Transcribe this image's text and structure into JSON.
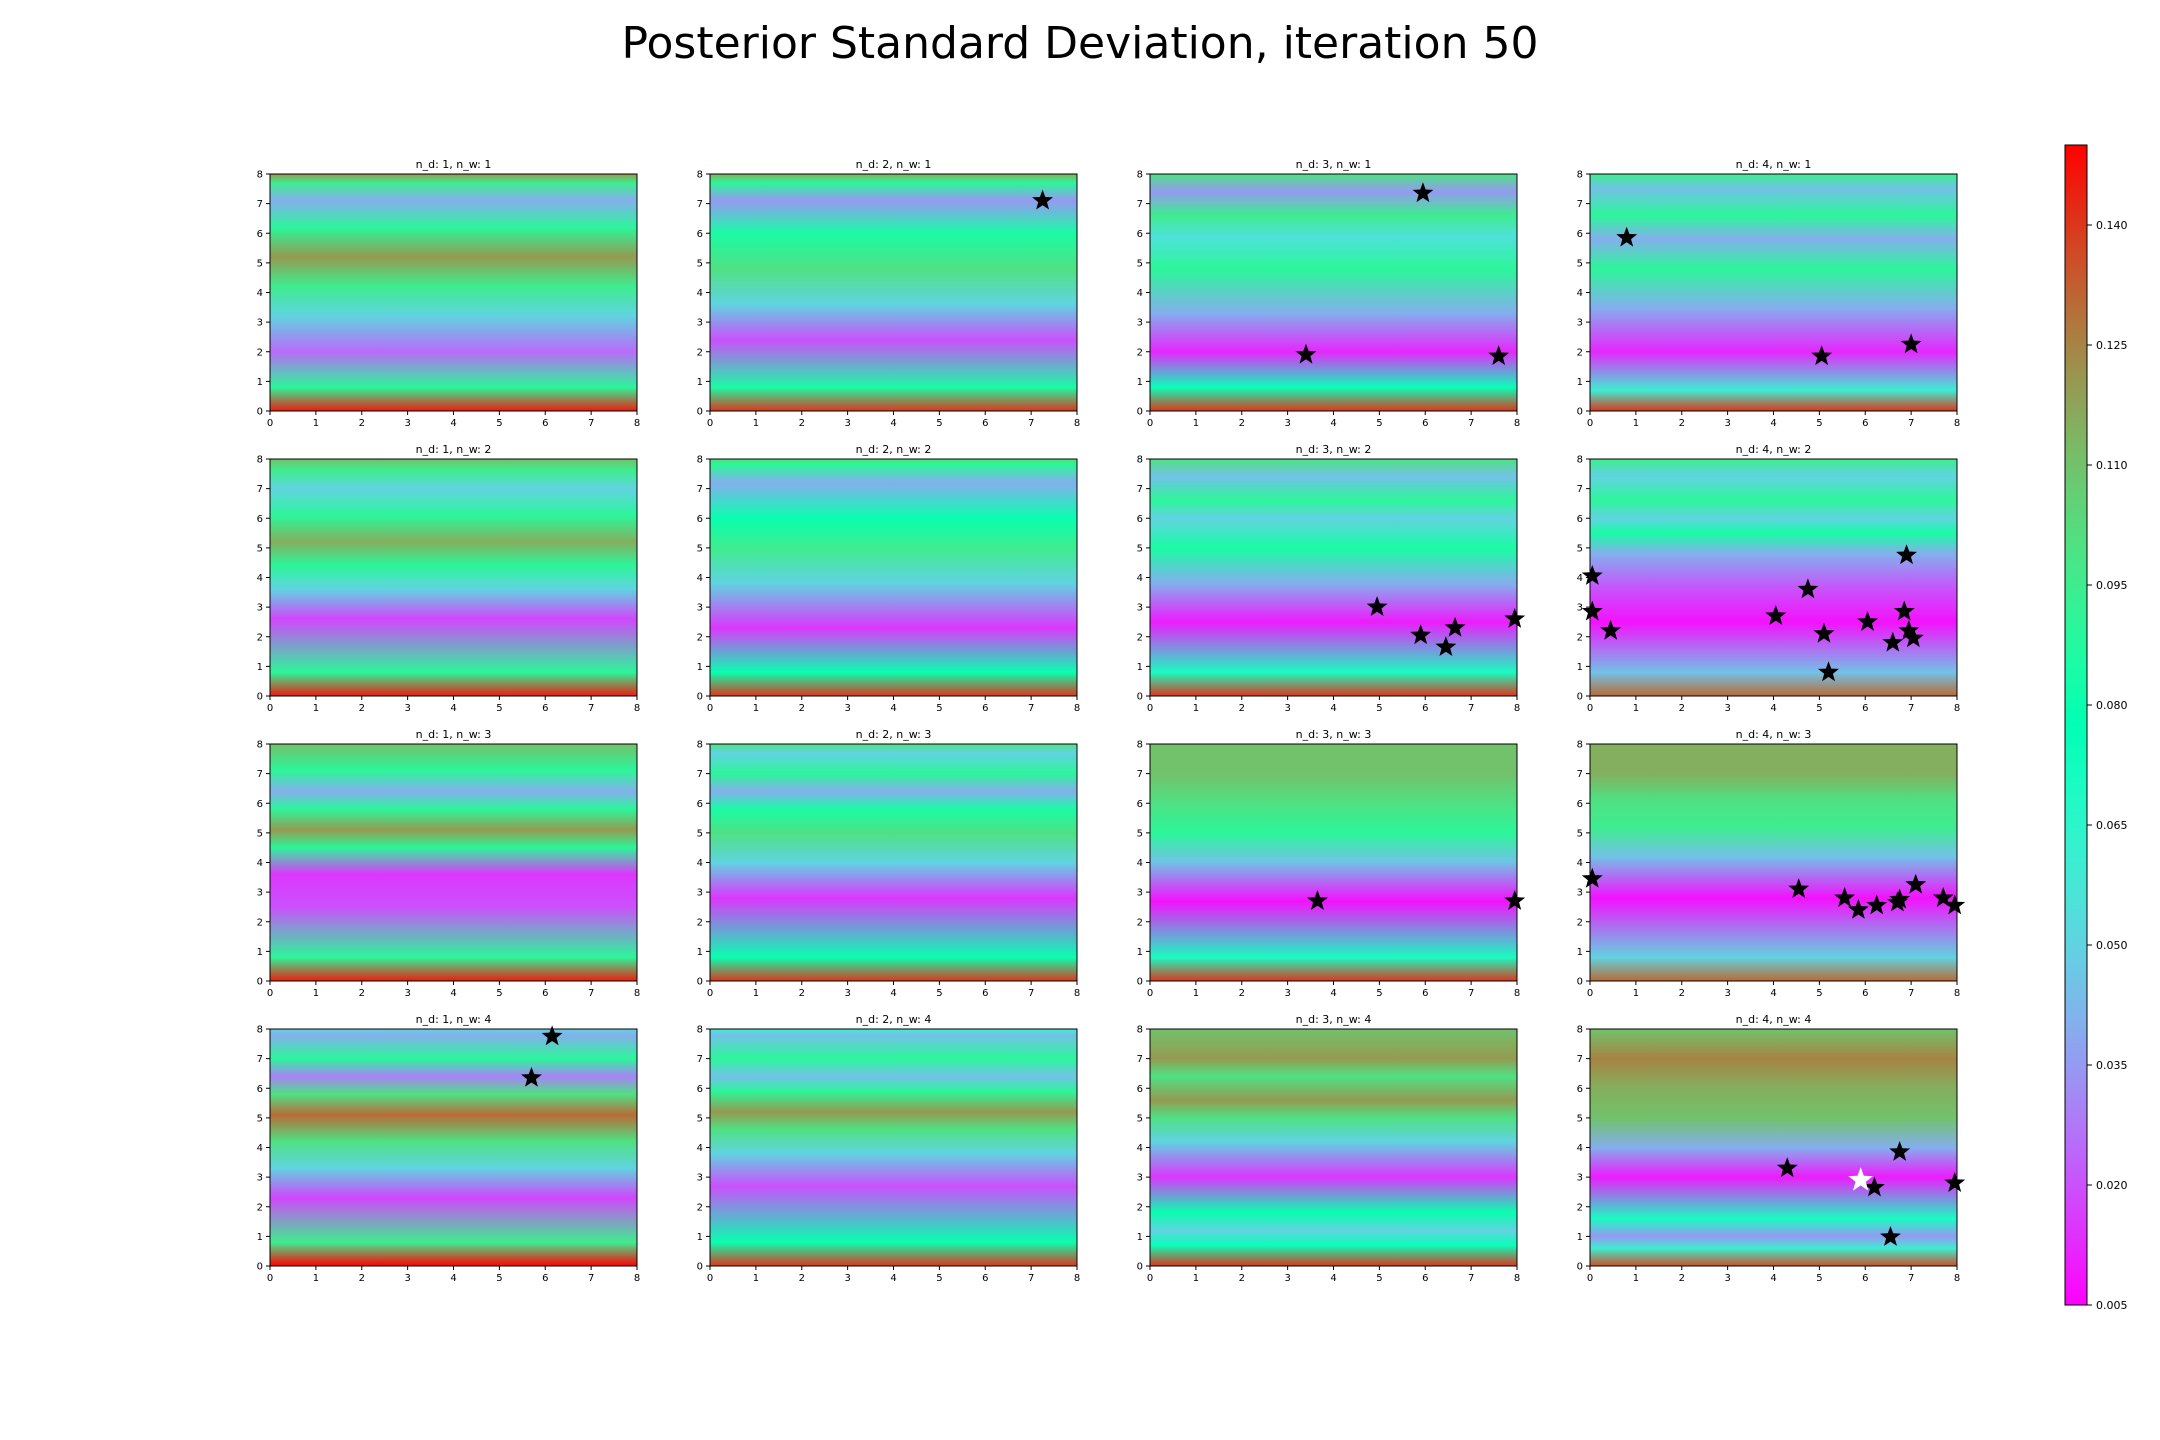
{
  "title": "Posterior Standard Deviation, iteration 50",
  "colorbar": {
    "min": 0.005,
    "max": 0.15,
    "tick_values": [
      0.005,
      0.02,
      0.035,
      0.05,
      0.065,
      0.08,
      0.095,
      0.11,
      0.125,
      0.14
    ],
    "tick_labels": [
      "0.005",
      "0.020",
      "0.035",
      "0.050",
      "0.065",
      "0.080",
      "0.095",
      "0.110",
      "0.125",
      "0.140"
    ],
    "colormap": "rainbow"
  },
  "chart_data": {
    "type": "heatmap",
    "grid": {
      "rows": 4,
      "cols": 4
    },
    "xlim": [
      0,
      8
    ],
    "ylim": [
      0,
      8
    ],
    "xticks": [
      "0",
      "1",
      "2",
      "3",
      "4",
      "5",
      "6",
      "7",
      "8"
    ],
    "yticks": [
      "0",
      "1",
      "2",
      "3",
      "4",
      "5",
      "6",
      "7",
      "8"
    ],
    "marker_color": "#000000",
    "highlight_marker_color": "#ffffff",
    "panels": [
      {
        "row": 0,
        "col": 0,
        "title": "n_d: 1, n_w: 1",
        "top_value": 0.11,
        "bands": [
          [
            0,
            0.145
          ],
          [
            0.8,
            0.09
          ],
          [
            2,
            0.025
          ],
          [
            3.2,
            0.05
          ],
          [
            4.2,
            0.095
          ],
          [
            5.2,
            0.12
          ],
          [
            6.2,
            0.09
          ],
          [
            7.1,
            0.04
          ],
          [
            7.7,
            0.095
          ],
          [
            8,
            0.12
          ]
        ],
        "points": []
      },
      {
        "row": 0,
        "col": 1,
        "title": "n_d: 2, n_w: 1",
        "top_value": 0.11,
        "bands": [
          [
            0,
            0.14
          ],
          [
            0.8,
            0.085
          ],
          [
            2.4,
            0.02
          ],
          [
            3.6,
            0.05
          ],
          [
            4.8,
            0.1
          ],
          [
            6,
            0.085
          ],
          [
            7.1,
            0.035
          ],
          [
            7.7,
            0.09
          ],
          [
            8,
            0.115
          ]
        ],
        "points": [
          [
            7.25,
            7.1
          ]
        ]
      },
      {
        "row": 0,
        "col": 2,
        "title": "n_d: 3, n_w: 1",
        "top_value": 0.11,
        "bands": [
          [
            0,
            0.14
          ],
          [
            0.8,
            0.075
          ],
          [
            2,
            0.012
          ],
          [
            3.3,
            0.04
          ],
          [
            4.8,
            0.09
          ],
          [
            5.9,
            0.055
          ],
          [
            6.6,
            0.095
          ],
          [
            7.4,
            0.035
          ],
          [
            8,
            0.1
          ]
        ],
        "points": [
          [
            5.95,
            7.35
          ],
          [
            3.4,
            1.9
          ],
          [
            7.6,
            1.85
          ]
        ]
      },
      {
        "row": 0,
        "col": 3,
        "title": "n_d: 4, n_w: 1",
        "top_value": 0.105,
        "bands": [
          [
            0,
            0.14
          ],
          [
            0.7,
            0.06
          ],
          [
            2,
            0.012
          ],
          [
            3.5,
            0.04
          ],
          [
            4.8,
            0.09
          ],
          [
            5.8,
            0.04
          ],
          [
            6.6,
            0.09
          ],
          [
            7.5,
            0.045
          ],
          [
            8,
            0.095
          ]
        ],
        "points": [
          [
            0.8,
            5.85
          ],
          [
            5.05,
            1.85
          ],
          [
            7.0,
            2.25
          ]
        ]
      },
      {
        "row": 1,
        "col": 0,
        "title": "n_d: 1, n_w: 2",
        "top_value": 0.11,
        "bands": [
          [
            0,
            0.145
          ],
          [
            0.8,
            0.09
          ],
          [
            2.6,
            0.018
          ],
          [
            3.6,
            0.05
          ],
          [
            4.4,
            0.09
          ],
          [
            5.2,
            0.115
          ],
          [
            6.1,
            0.09
          ],
          [
            7,
            0.05
          ],
          [
            7.6,
            0.095
          ],
          [
            8,
            0.11
          ]
        ],
        "points": []
      },
      {
        "row": 1,
        "col": 1,
        "title": "n_d: 2, n_w: 2",
        "top_value": 0.105,
        "bands": [
          [
            0,
            0.14
          ],
          [
            0.8,
            0.08
          ],
          [
            2.3,
            0.015
          ],
          [
            3.8,
            0.05
          ],
          [
            5,
            0.095
          ],
          [
            6,
            0.08
          ],
          [
            7.2,
            0.04
          ],
          [
            7.8,
            0.09
          ],
          [
            8,
            0.1
          ]
        ],
        "points": []
      },
      {
        "row": 1,
        "col": 2,
        "title": "n_d: 3, n_w: 2",
        "top_value": 0.105,
        "bands": [
          [
            0,
            0.14
          ],
          [
            0.8,
            0.07
          ],
          [
            2.5,
            0.01
          ],
          [
            3.8,
            0.04
          ],
          [
            5,
            0.085
          ],
          [
            6,
            0.05
          ],
          [
            6.6,
            0.09
          ],
          [
            7.4,
            0.045
          ],
          [
            8,
            0.1
          ]
        ],
        "points": [
          [
            4.95,
            3.0
          ],
          [
            5.9,
            2.05
          ],
          [
            6.45,
            1.65
          ],
          [
            6.65,
            2.3
          ],
          [
            7.95,
            2.6
          ]
        ]
      },
      {
        "row": 1,
        "col": 3,
        "title": "n_d: 4, n_w: 2",
        "top_value": 0.1,
        "bands": [
          [
            0,
            0.13
          ],
          [
            0.8,
            0.045
          ],
          [
            2.5,
            0.008
          ],
          [
            3.6,
            0.02
          ],
          [
            4.8,
            0.04
          ],
          [
            5.5,
            0.085
          ],
          [
            6,
            0.05
          ],
          [
            6.6,
            0.09
          ],
          [
            7.4,
            0.05
          ],
          [
            8,
            0.095
          ]
        ],
        "points": [
          [
            0.05,
            4.05
          ],
          [
            0.05,
            2.85
          ],
          [
            0.45,
            2.2
          ],
          [
            4.05,
            2.7
          ],
          [
            4.75,
            3.6
          ],
          [
            5.1,
            2.1
          ],
          [
            5.2,
            0.8
          ],
          [
            6.05,
            2.5
          ],
          [
            6.6,
            1.8
          ],
          [
            6.85,
            2.85
          ],
          [
            6.9,
            4.75
          ],
          [
            6.95,
            2.2
          ],
          [
            7.05,
            1.95
          ]
        ]
      },
      {
        "row": 2,
        "col": 0,
        "title": "n_d: 1, n_w: 3",
        "top_value": 0.11,
        "bands": [
          [
            0,
            0.145
          ],
          [
            0.8,
            0.09
          ],
          [
            2.5,
            0.02
          ],
          [
            3.6,
            0.015
          ],
          [
            4.5,
            0.09
          ],
          [
            5.1,
            0.12
          ],
          [
            5.8,
            0.09
          ],
          [
            6.4,
            0.04
          ],
          [
            7.1,
            0.09
          ],
          [
            8,
            0.11
          ]
        ],
        "points": []
      },
      {
        "row": 2,
        "col": 1,
        "title": "n_d: 2, n_w: 3",
        "top_value": 0.105,
        "bands": [
          [
            0,
            0.14
          ],
          [
            0.8,
            0.08
          ],
          [
            2.8,
            0.015
          ],
          [
            4,
            0.05
          ],
          [
            5,
            0.1
          ],
          [
            5.8,
            0.085
          ],
          [
            6.4,
            0.04
          ],
          [
            7,
            0.09
          ],
          [
            7.7,
            0.05
          ],
          [
            8,
            0.1
          ]
        ],
        "points": []
      },
      {
        "row": 2,
        "col": 2,
        "title": "n_d: 3, n_w: 3",
        "top_value": 0.105,
        "bands": [
          [
            0,
            0.14
          ],
          [
            0.8,
            0.07
          ],
          [
            2.7,
            0.008
          ],
          [
            4,
            0.045
          ],
          [
            5,
            0.09
          ],
          [
            6,
            0.1
          ],
          [
            7,
            0.11
          ],
          [
            8,
            0.11
          ]
        ],
        "points": [
          [
            3.65,
            2.7
          ],
          [
            7.95,
            2.7
          ]
        ]
      },
      {
        "row": 2,
        "col": 3,
        "title": "n_d: 4, n_w: 3",
        "top_value": 0.115,
        "bands": [
          [
            0,
            0.13
          ],
          [
            0.8,
            0.05
          ],
          [
            2.8,
            0.008
          ],
          [
            4.2,
            0.045
          ],
          [
            5.2,
            0.095
          ],
          [
            6.1,
            0.1
          ],
          [
            7,
            0.115
          ],
          [
            8,
            0.115
          ]
        ],
        "points": [
          [
            0.05,
            3.45
          ],
          [
            4.55,
            3.1
          ],
          [
            5.55,
            2.8
          ],
          [
            5.85,
            2.4
          ],
          [
            6.25,
            2.55
          ],
          [
            6.7,
            2.65
          ],
          [
            6.75,
            2.75
          ],
          [
            7.1,
            3.25
          ],
          [
            7.7,
            2.8
          ],
          [
            7.95,
            2.55
          ]
        ]
      },
      {
        "row": 3,
        "col": 0,
        "title": "n_d: 1, n_w: 4",
        "top_value": 0.095,
        "bands": [
          [
            0,
            0.15
          ],
          [
            0.8,
            0.095
          ],
          [
            2.3,
            0.018
          ],
          [
            3.3,
            0.05
          ],
          [
            4.2,
            0.1
          ],
          [
            5.1,
            0.13
          ],
          [
            5.8,
            0.1
          ],
          [
            6.4,
            0.03
          ],
          [
            7,
            0.09
          ],
          [
            7.8,
            0.04
          ],
          [
            8,
            0.05
          ]
        ],
        "points": [
          [
            6.15,
            7.75
          ],
          [
            5.7,
            6.35
          ]
        ]
      },
      {
        "row": 3,
        "col": 1,
        "title": "n_d: 2, n_w: 4",
        "top_value": 0.1,
        "bands": [
          [
            0,
            0.14
          ],
          [
            0.8,
            0.08
          ],
          [
            2.7,
            0.02
          ],
          [
            3.8,
            0.05
          ],
          [
            4.6,
            0.1
          ],
          [
            5.2,
            0.12
          ],
          [
            5.9,
            0.09
          ],
          [
            6.4,
            0.045
          ],
          [
            7,
            0.09
          ],
          [
            7.8,
            0.045
          ],
          [
            8,
            0.06
          ]
        ],
        "points": []
      },
      {
        "row": 3,
        "col": 2,
        "title": "n_d: 3, n_w: 4",
        "top_value": 0.11,
        "bands": [
          [
            0,
            0.14
          ],
          [
            0.7,
            0.075
          ],
          [
            1.2,
            0.05
          ],
          [
            1.8,
            0.08
          ],
          [
            3,
            0.015
          ],
          [
            4.2,
            0.05
          ],
          [
            5,
            0.1
          ],
          [
            5.6,
            0.12
          ],
          [
            6.4,
            0.1
          ],
          [
            7,
            0.12
          ],
          [
            8,
            0.11
          ]
        ],
        "points": []
      },
      {
        "row": 3,
        "col": 3,
        "title": "n_d: 4, n_w: 4",
        "top_value": 0.115,
        "bands": [
          [
            0,
            0.135
          ],
          [
            0.6,
            0.06
          ],
          [
            1,
            0.035
          ],
          [
            1.6,
            0.07
          ],
          [
            3,
            0.01
          ],
          [
            4,
            0.04
          ],
          [
            5,
            0.11
          ],
          [
            6,
            0.115
          ],
          [
            7,
            0.125
          ],
          [
            8,
            0.11
          ]
        ],
        "points": [
          [
            4.3,
            3.3
          ],
          [
            6.2,
            2.65
          ],
          [
            6.55,
            0.98
          ],
          [
            6.75,
            3.85
          ],
          [
            7.95,
            2.8
          ]
        ],
        "highlight_points": [
          [
            5.9,
            2.9
          ]
        ]
      }
    ]
  }
}
